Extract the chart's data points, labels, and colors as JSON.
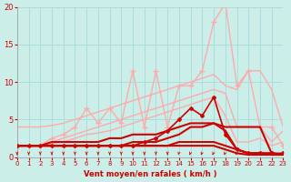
{
  "background_color": "#cceee8",
  "grid_color": "#aadddd",
  "x_min": 0,
  "x_max": 23,
  "y_min": 0,
  "y_max": 20,
  "yticks": [
    0,
    5,
    10,
    15,
    20
  ],
  "xticks": [
    0,
    1,
    2,
    3,
    4,
    5,
    6,
    7,
    8,
    9,
    10,
    11,
    12,
    13,
    14,
    15,
    16,
    17,
    18,
    19,
    20,
    21,
    22,
    23
  ],
  "xlabel": "Vent moyen/en rafales ( km/h )",
  "xlabel_color": "#cc0000",
  "tick_color": "#cc0000",
  "arrow_color": "#cc0000",
  "line_upper_smooth_x": [
    0,
    1,
    2,
    3,
    4,
    5,
    6,
    7,
    8,
    9,
    10,
    11,
    12,
    13,
    14,
    15,
    16,
    17,
    18,
    19,
    20,
    21,
    22,
    23
  ],
  "line_upper_smooth_y": [
    4.0,
    4.0,
    4.0,
    4.2,
    4.5,
    5.0,
    5.5,
    6.0,
    6.5,
    7.0,
    7.5,
    8.0,
    8.5,
    9.0,
    9.5,
    10.0,
    10.5,
    11.0,
    9.5,
    9.0,
    11.5,
    11.5,
    9.0,
    4.0
  ],
  "line_upper_smooth_color": "#ffaaaa",
  "line_upper_smooth_lw": 1.0,
  "line_jagged_x": [
    0,
    1,
    2,
    3,
    4,
    5,
    6,
    7,
    8,
    9,
    10,
    11,
    12,
    13,
    14,
    15,
    16,
    17,
    18,
    19,
    20,
    21,
    22,
    23
  ],
  "line_jagged_y": [
    1.5,
    1.5,
    1.5,
    2.5,
    3.0,
    4.0,
    6.5,
    4.5,
    6.5,
    4.5,
    11.5,
    4.0,
    11.5,
    4.0,
    9.5,
    9.5,
    11.5,
    18.0,
    20.5,
    9.5,
    11.5,
    4.0,
    4.0,
    1.5
  ],
  "line_jagged_color": "#ffaaaa",
  "line_jagged_lw": 1.0,
  "line_jagged_marker": "+",
  "line_jagged_ms": 4,
  "line_mid_smooth_x": [
    0,
    1,
    2,
    3,
    4,
    5,
    6,
    7,
    8,
    9,
    10,
    11,
    12,
    13,
    14,
    15,
    16,
    17,
    18,
    19,
    20,
    21,
    22,
    23
  ],
  "line_mid_smooth_y": [
    1.5,
    1.5,
    1.5,
    2.0,
    2.5,
    3.0,
    3.5,
    4.0,
    4.5,
    5.0,
    5.5,
    6.0,
    6.5,
    7.0,
    7.5,
    8.0,
    8.5,
    9.0,
    8.5,
    4.0,
    4.0,
    4.0,
    2.0,
    3.5
  ],
  "line_mid_smooth_color": "#ffaaaa",
  "line_mid_smooth_lw": 1.0,
  "line_lower_smooth_x": [
    0,
    1,
    2,
    3,
    4,
    5,
    6,
    7,
    8,
    9,
    10,
    11,
    12,
    13,
    14,
    15,
    16,
    17,
    18,
    19,
    20,
    21,
    22,
    23
  ],
  "line_lower_smooth_y": [
    1.5,
    1.5,
    1.5,
    1.8,
    2.0,
    2.5,
    3.0,
    3.2,
    3.5,
    4.0,
    4.5,
    5.0,
    5.5,
    6.0,
    6.5,
    7.0,
    7.5,
    8.0,
    5.5,
    2.0,
    2.0,
    2.5,
    1.5,
    2.0
  ],
  "line_lower_smooth_color": "#ffaaaa",
  "line_lower_smooth_lw": 1.0,
  "line_dark_jagged_x": [
    0,
    1,
    2,
    3,
    4,
    5,
    6,
    7,
    8,
    9,
    10,
    11,
    12,
    13,
    14,
    15,
    16,
    17,
    18,
    19,
    20,
    21,
    22,
    23
  ],
  "line_dark_jagged_y": [
    1.5,
    1.5,
    1.5,
    1.5,
    1.5,
    1.5,
    1.5,
    1.5,
    1.5,
    1.5,
    1.5,
    2.0,
    2.5,
    3.5,
    5.0,
    6.5,
    5.5,
    8.0,
    3.0,
    1.0,
    0.5,
    0.5,
    0.5,
    0.5
  ],
  "line_dark_jagged_color": "#cc0000",
  "line_dark_jagged_lw": 1.2,
  "line_dark_jagged_marker": "D",
  "line_dark_jagged_ms": 2.0,
  "line_dark1_x": [
    0,
    1,
    2,
    3,
    4,
    5,
    6,
    7,
    8,
    9,
    10,
    11,
    12,
    13,
    14,
    15,
    16,
    17,
    18,
    19,
    20,
    21,
    22,
    23
  ],
  "line_dark1_y": [
    1.5,
    1.5,
    1.5,
    2.0,
    2.0,
    2.0,
    2.0,
    2.0,
    2.5,
    2.5,
    3.0,
    3.0,
    3.0,
    3.5,
    4.0,
    4.5,
    4.5,
    4.5,
    4.0,
    4.0,
    4.0,
    4.0,
    0.5,
    0.3
  ],
  "line_dark1_color": "#cc0000",
  "line_dark1_lw": 1.5,
  "line_dark2_x": [
    0,
    1,
    2,
    3,
    4,
    5,
    6,
    7,
    8,
    9,
    10,
    11,
    12,
    13,
    14,
    15,
    16,
    17,
    18,
    19,
    20,
    21,
    22,
    23
  ],
  "line_dark2_y": [
    1.5,
    1.5,
    1.5,
    1.5,
    1.5,
    1.5,
    1.5,
    1.5,
    1.5,
    1.5,
    2.0,
    2.0,
    2.0,
    2.5,
    3.0,
    4.0,
    4.0,
    4.5,
    3.5,
    1.0,
    0.5,
    0.5,
    0.5,
    0.3
  ],
  "line_dark2_color": "#cc0000",
  "line_dark2_lw": 1.5,
  "line_dark3_x": [
    0,
    1,
    2,
    3,
    4,
    5,
    6,
    7,
    8,
    9,
    10,
    11,
    12,
    13,
    14,
    15,
    16,
    17,
    18,
    19,
    20,
    21,
    22,
    23
  ],
  "line_dark3_y": [
    1.5,
    1.5,
    1.5,
    1.5,
    1.5,
    1.5,
    1.5,
    1.5,
    1.5,
    1.5,
    1.5,
    1.5,
    1.5,
    1.5,
    2.0,
    2.0,
    2.0,
    2.0,
    1.5,
    1.0,
    0.5,
    0.5,
    0.3,
    0.3
  ],
  "line_dark3_color": "#cc0000",
  "line_dark3_lw": 1.5,
  "line_dark4_x": [
    0,
    1,
    2,
    3,
    4,
    5,
    6,
    7,
    8,
    9,
    10,
    11,
    12,
    13,
    14,
    15,
    16,
    17,
    18,
    19,
    20,
    21,
    22,
    23
  ],
  "line_dark4_y": [
    1.5,
    1.5,
    1.5,
    1.5,
    1.5,
    1.5,
    1.5,
    1.5,
    1.5,
    1.5,
    1.5,
    1.5,
    1.5,
    1.5,
    1.5,
    1.5,
    1.5,
    1.5,
    1.0,
    0.5,
    0.3,
    0.3,
    0.3,
    0.3
  ],
  "line_dark4_color": "#cc0000",
  "line_dark4_lw": 1.5
}
